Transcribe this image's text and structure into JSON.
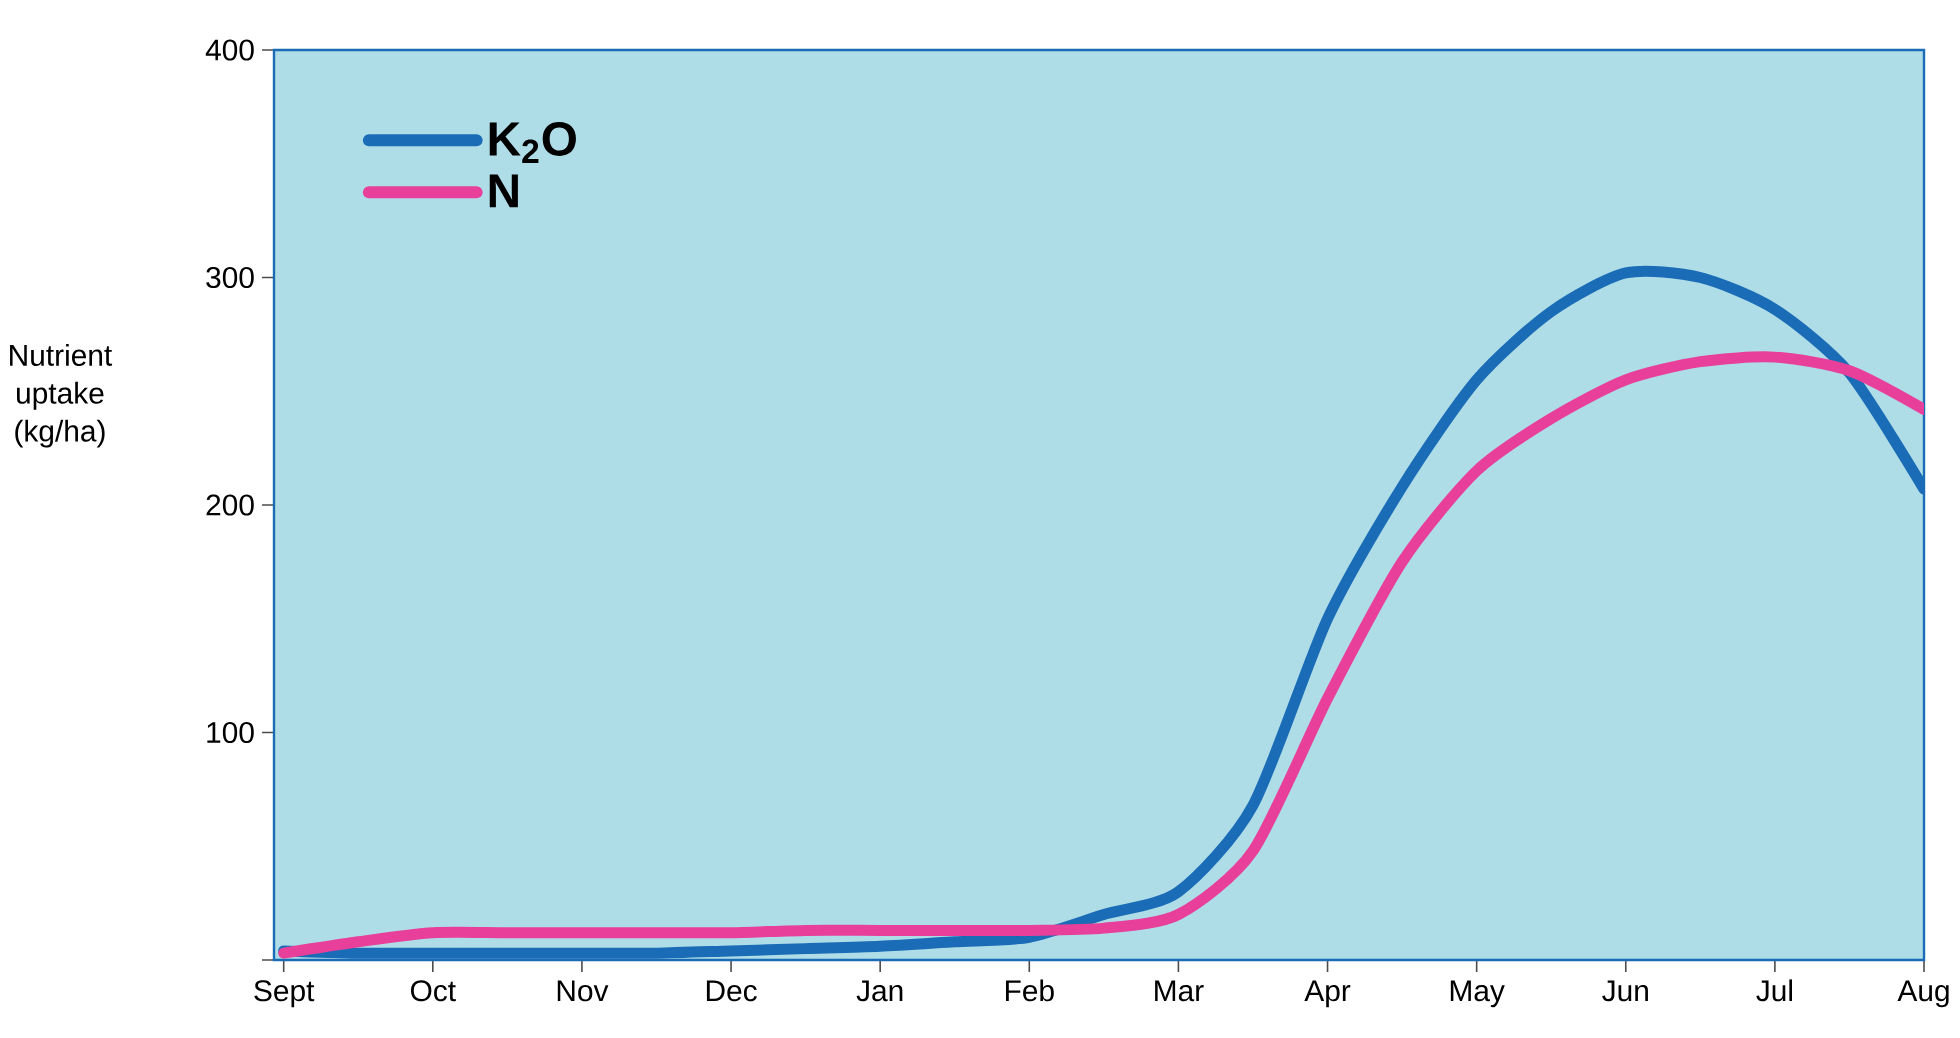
{
  "chart_data": {
    "type": "line",
    "ylabel": "Nutrient uptake (kg/ha)",
    "categories": [
      "Sept",
      null,
      "Oct",
      null,
      "Nov",
      null,
      "Dec",
      null,
      "Jan",
      null,
      "Feb",
      null,
      "Mar",
      null,
      "Apr",
      null,
      "May",
      null,
      "Jun",
      null,
      "Jul",
      null,
      "Aug"
    ],
    "ylim": [
      0,
      400
    ],
    "yticks": [
      {
        "value": 0,
        "label": null
      },
      100,
      200,
      300,
      400
    ],
    "legend": "top left",
    "grid": false,
    "marker": "none",
    "line_style": "solid",
    "series": [
      {
        "name": "K$_{2}$O",
        "color": "#1b6cb6",
        "values": [
          4,
          3,
          3,
          3,
          3,
          3,
          4,
          5,
          6,
          8,
          10,
          20,
          30,
          68,
          150,
          208,
          255,
          285,
          302,
          300,
          286,
          258,
          207
        ]
      },
      {
        "name": "N",
        "color": "#e8409a",
        "values": [
          3,
          8,
          12,
          12,
          12,
          12,
          12,
          13,
          13,
          13,
          13,
          14,
          20,
          48,
          115,
          175,
          215,
          238,
          255,
          263,
          265,
          259,
          242
        ]
      }
    ]
  }
}
